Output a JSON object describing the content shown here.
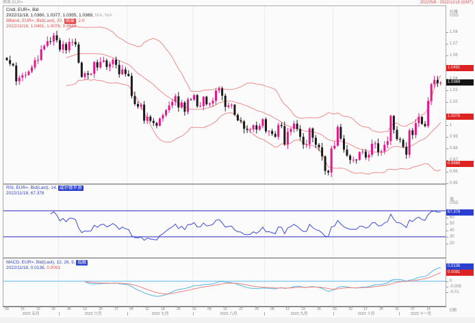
{
  "window": {
    "title": "图表 EUR=",
    "date_range": "2022/5/8 - 2022/11/18 (GMT)"
  },
  "main_panel": {
    "legend1": "Cndl, EUR=, Bid",
    "legend2": "2022/11/18, 1.0360, 1.0377, 1.0355, 1.0369,",
    "legend2_na": " N/A, N/A",
    "legend3_prefix": "BBand, EUR=, Bid(Last), 20, ",
    "legend3_chip": "简单",
    "legend3_suffix": ", 2.0",
    "legend4": "2022/11/18, 1.0491, 1.0076, 0.9668",
    "axis": {
      "caption": "价格",
      "currency": "USD",
      "ticks": [
        {
          "label": "1.08",
          "value": 1.08
        },
        {
          "label": "1.07",
          "value": 1.07
        },
        {
          "label": "1.06",
          "value": 1.06
        },
        {
          "label": "1.04",
          "value": 1.04
        },
        {
          "label": "1.03",
          "value": 1.03
        },
        {
          "label": "1.02",
          "value": 1.02
        },
        {
          "label": "1",
          "value": 1.0
        },
        {
          "label": "0.99",
          "value": 0.99
        },
        {
          "label": "0.98",
          "value": 0.98
        },
        {
          "label": "0.97",
          "value": 0.97
        },
        {
          "label": "0.96",
          "value": 0.96
        },
        {
          "label": "0.95",
          "value": 0.95
        }
      ],
      "badges": [
        {
          "text": "1.0491",
          "value": 1.0491,
          "bg": "#dd2222"
        },
        {
          "text": "1.0369",
          "value": 1.0369,
          "bg": "#141414"
        },
        {
          "text": "1.0076",
          "value": 1.0076,
          "bg": "#dd2222"
        },
        {
          "text": "0.9668",
          "value": 0.9668,
          "bg": "#dd2222"
        }
      ]
    }
  },
  "rsi_panel": {
    "legend1_prefix": "RSI, EUR=, Bid(Last), 14, ",
    "legend1_chip": "威尔德平滑",
    "legend2": "2022/11/18, 67.378",
    "axis": {
      "caption": "值",
      "currency": "USD",
      "ticks": [
        {
          "label": "60",
          "value": 60
        },
        {
          "label": "50",
          "value": 50
        },
        {
          "label": "40",
          "value": 40
        },
        {
          "label": "30",
          "value": 30
        },
        {
          "label": "20",
          "value": 20
        }
      ],
      "badges": [
        {
          "text": "67.378",
          "value": 67.378,
          "bg": "#2a3fd0"
        }
      ]
    }
  },
  "macd_panel": {
    "legend1_prefix": "MACD, EUR=, Bid(Last), 12, 26, 9, ",
    "legend1_chip": "指数",
    "legend2_prefix": "2022/11/18, ",
    "legend2_macd": "0.0136",
    "legend2_sep": ", ",
    "legend2_signal": "0.0091",
    "axis": {
      "currency": "USD",
      "ticks": [
        {
          "label": "0",
          "value": 0
        },
        {
          "label": "-0.005",
          "value": -0.005
        },
        {
          "label": "-0.01",
          "value": -0.01
        }
      ],
      "badges": [
        {
          "text": "0.0136",
          "value": 0.0136,
          "bg": "#2a3fd0"
        },
        {
          "text": "0.0091",
          "value": 0.0091,
          "bg": "#dd2222"
        }
      ]
    }
  },
  "time_axis": {
    "caption": "日期",
    "day_labels": [
      "09",
      "16",
      "23",
      "30",
      "06",
      "13",
      "20",
      "27",
      "04",
      "11",
      "18",
      "25",
      "01",
      "08",
      "15",
      "22",
      "29",
      "05",
      "12",
      "19",
      "26",
      "03",
      "10",
      "17",
      "24",
      "31",
      "07",
      "14"
    ],
    "months": [
      {
        "label": "2022 五月",
        "start_index": 0
      },
      {
        "label": "2022 六月",
        "start_index": 17
      },
      {
        "label": "2022 七月",
        "start_index": 39
      },
      {
        "label": "2022 八月",
        "start_index": 60
      },
      {
        "label": "2022 九月",
        "start_index": 83
      },
      {
        "label": "2022 十月",
        "start_index": 105
      },
      {
        "label": "2022 十一月",
        "start_index": 126
      }
    ]
  },
  "colors": {
    "candle_up": "#e8148c",
    "candle_down": "#1a1a1a",
    "bband": "#ef8a8a",
    "rsi_line": "#3a4ad6",
    "rsi_level": "#2626b8",
    "macd_line": "#4fb6e0",
    "macd_signal": "#ef8080",
    "macd_zero": "#8fcdf0",
    "grid": "#ececec"
  },
  "chart_data": {
    "type": "candlestick+indicators",
    "instrument": "EUR=",
    "field": "Bid",
    "interval": "daily",
    "date_range": "2022/5/8 - 2022/11/18 (GMT)",
    "title": "Cndl, EUR=, Bid",
    "ylim": [
      0.95,
      1.102
    ],
    "ohlc_last": {
      "date": "2022/11/18",
      "open": 1.036,
      "high": 1.0377,
      "low": 1.0355,
      "close": 1.0369
    },
    "bollinger": {
      "period": 20,
      "ma_type": "简单",
      "stdev": 2.0,
      "upper": 1.0491,
      "middle": 1.0076,
      "lower": 0.9668
    },
    "rsi": {
      "period": 14,
      "smoothing": "威尔德平滑",
      "last": 67.378,
      "levels": [
        70,
        30
      ],
      "range_ticks": [
        60,
        50,
        40,
        30,
        20
      ]
    },
    "macd": {
      "fast": 12,
      "slow": 26,
      "signal": 9,
      "ma_type": "指数",
      "macd_last": 0.0136,
      "signal_last": 0.0091,
      "zero_line": 0
    },
    "closes": [
      1.0562,
      1.053,
      1.0516,
      1.038,
      1.0412,
      1.0431,
      1.0435,
      1.0465,
      1.05,
      1.0562,
      1.0564,
      1.0655,
      1.0685,
      1.0725,
      1.0722,
      1.0775,
      1.0733,
      1.0652,
      1.07,
      1.0647,
      1.0718,
      1.0719,
      1.0697,
      1.054,
      1.0417,
      1.0448,
      1.0437,
      1.0445,
      1.0545,
      1.0499,
      1.0547,
      1.0559,
      1.0504,
      1.0528,
      1.0566,
      1.0521,
      1.0441,
      1.0482,
      1.0443,
      1.0426,
      1.0253,
      1.0185,
      1.0163,
      1.018,
      1.0041,
      1.0076,
      1.004,
      1.0021,
      0.9998,
      1.006,
      1.0089,
      1.0132,
      1.0172,
      1.0203,
      1.0252,
      1.0155,
      1.0198,
      1.0118,
      1.0223,
      1.0222,
      1.0262,
      1.0165,
      1.0166,
      1.0247,
      1.0182,
      1.019,
      1.0213,
      1.03,
      1.0318,
      1.0256,
      1.016,
      1.0173,
      1.0178,
      1.0092,
      1.0044,
      1.0036,
      0.9972,
      0.9963,
      0.9968,
      1.0002,
      0.9965,
      0.9997,
      1.0054,
      0.995,
      0.9952,
      0.9928,
      0.9903,
      1.0005,
      0.9995,
      0.9839,
      0.9945,
      0.9972,
      1.0016,
      0.997,
      0.9903,
      0.9836,
      0.9839,
      0.9975,
      0.9895,
      0.9835,
      0.9812,
      0.9735,
      0.961,
      0.9596,
      0.9803,
      0.9826,
      0.9988,
      0.9887,
      0.9793,
      0.9741,
      0.9704,
      0.9706,
      0.9704,
      0.9771,
      0.9776,
      0.9725,
      0.9749,
      0.9843,
      0.9847,
      0.9772,
      0.9779,
      0.9834,
      0.9866,
      1.0083,
      0.9963,
      0.9883,
      0.9876,
      0.9817,
      0.9749,
      0.9958,
      0.9918,
      1.002,
      1.0074,
      1.0013,
      0.9994,
      1.0211,
      1.0355,
      1.0392,
      1.0363,
      1.0369
    ]
  }
}
